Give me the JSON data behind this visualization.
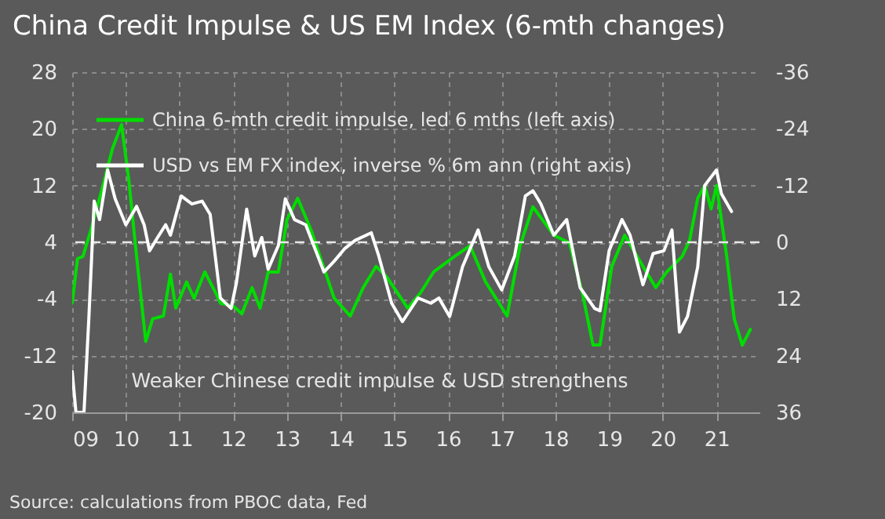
{
  "chart_data": {
    "type": "line",
    "title": "China Credit Impulse & US EM Index (6-mth changes)",
    "xlim": [
      2009,
      2021.8
    ],
    "xticks": [
      {
        "value": 2009,
        "label": "09"
      },
      {
        "value": 2010,
        "label": "10"
      },
      {
        "value": 2011,
        "label": "11"
      },
      {
        "value": 2012,
        "label": "12"
      },
      {
        "value": 2013,
        "label": "13"
      },
      {
        "value": 2014,
        "label": "14"
      },
      {
        "value": 2015,
        "label": "15"
      },
      {
        "value": 2016,
        "label": "16"
      },
      {
        "value": 2017,
        "label": "17"
      },
      {
        "value": 2018,
        "label": "18"
      },
      {
        "value": 2019,
        "label": "19"
      },
      {
        "value": 2020,
        "label": "20"
      },
      {
        "value": 2021,
        "label": "21"
      }
    ],
    "ylim": [
      -20,
      28
    ],
    "yticks": [
      -20,
      -12,
      -4,
      4,
      12,
      20,
      28
    ],
    "y2lim": [
      36,
      -36
    ],
    "y2ticks": [
      -36,
      -24,
      -12,
      0,
      12,
      24,
      36
    ],
    "grid": true,
    "legend": "top left",
    "line_style": "solid",
    "ref_lines": [
      {
        "axis": "y",
        "value": 4,
        "line_style": "dashed",
        "color": "#e8e8e8"
      }
    ],
    "series": [
      {
        "name": "China  6-mth  credit impulse, led 6 mths (left axis)",
        "color": "#00dd00",
        "x": [
          2009.0,
          2009.1,
          2009.2,
          2009.36,
          2009.56,
          2009.75,
          2009.92,
          2010.05,
          2010.2,
          2010.37,
          2010.5,
          2010.7,
          2010.83,
          2010.93,
          2011.13,
          2011.27,
          2011.47,
          2011.67,
          2011.76,
          2012.0,
          2012.16,
          2012.35,
          2012.5,
          2012.65,
          2012.84,
          2013.0,
          2013.2,
          2013.45,
          2013.88,
          2014.18,
          2014.42,
          2014.66,
          2014.86,
          2015.25,
          2015.49,
          2015.73,
          2016.12,
          2016.41,
          2016.7,
          2017.1,
          2017.34,
          2017.58,
          2017.97,
          2018.26,
          2018.5,
          2018.7,
          2018.83,
          2019.05,
          2019.29,
          2019.63,
          2019.87,
          2020.07,
          2020.36,
          2020.5,
          2020.65,
          2020.78,
          2020.9,
          2021.0,
          2021.19,
          2021.33,
          2021.48,
          2021.63
        ],
        "values": [
          -4.6,
          1.7,
          2,
          6,
          11.6,
          17.2,
          20.6,
          13.1,
          2,
          -10,
          -6.8,
          -6.4,
          -0.5,
          -5.3,
          -1.6,
          -3.9,
          -0.2,
          -3.1,
          -4.6,
          -5,
          -6.1,
          -2.4,
          -5.3,
          -0.2,
          -0.2,
          7.2,
          10.2,
          5.7,
          -3.9,
          -6.4,
          -2.4,
          0.6,
          -0.9,
          -5.3,
          -3.1,
          -0.2,
          2,
          3.5,
          -1.6,
          -6.4,
          3.5,
          9,
          5,
          3.9,
          -3.1,
          -10.5,
          -10.5,
          0.6,
          5,
          0.6,
          -2.4,
          -0.2,
          2,
          4.3,
          10.2,
          12,
          8.7,
          12,
          2,
          -6.8,
          -10.5,
          -8.3
        ]
      },
      {
        "name": "USD vs EM  FX index,  inverse % 6m  ann  (right  axis)",
        "color": "#ffffff",
        "axis": "y2",
        "x": [
          2009.0,
          2009.07,
          2009.22,
          2009.31,
          2009.41,
          2009.51,
          2009.66,
          2009.8,
          2010.0,
          2010.2,
          2010.34,
          2010.44,
          2010.59,
          2010.74,
          2010.83,
          2011.03,
          2011.23,
          2011.42,
          2011.57,
          2011.76,
          2011.96,
          2012.06,
          2012.25,
          2012.4,
          2012.53,
          2012.65,
          2012.84,
          2012.97,
          2013.14,
          2013.35,
          2013.69,
          2013.88,
          2014.08,
          2014.27,
          2014.57,
          2014.71,
          2014.95,
          2015.15,
          2015.44,
          2015.68,
          2015.83,
          2016.03,
          2016.27,
          2016.56,
          2016.76,
          2017.0,
          2017.24,
          2017.44,
          2017.58,
          2017.73,
          2017.97,
          2018.21,
          2018.46,
          2018.73,
          2018.83,
          2019.0,
          2019.24,
          2019.39,
          2019.63,
          2019.82,
          2020.02,
          2020.17,
          2020.31,
          2020.46,
          2020.65,
          2020.78,
          2021.0,
          2021.09,
          2021.28
        ],
        "values": [
          27.3,
          36,
          36,
          16.2,
          -8.7,
          -4.8,
          -15.3,
          -9.2,
          -3.7,
          -7.6,
          -3.7,
          1.8,
          -1,
          -3.7,
          -1.5,
          -9.8,
          -8.1,
          -8.7,
          -5.9,
          11.8,
          14,
          8.5,
          -7,
          2.9,
          -1,
          5.7,
          0.7,
          -9.2,
          -4.8,
          -3.7,
          6.3,
          4,
          1.3,
          -0.4,
          -2,
          2.9,
          12.9,
          16.8,
          11.8,
          12.9,
          11.8,
          15.7,
          5.2,
          -2.6,
          5.2,
          10.1,
          2.9,
          -9.8,
          -10.9,
          -8.1,
          -1.5,
          -4.8,
          9.6,
          14,
          14.5,
          1.8,
          -4.8,
          -1.5,
          9,
          2.4,
          1.8,
          -2.6,
          19,
          15.7,
          5.2,
          -12,
          -15.3,
          -10.3,
          -6.5
        ]
      }
    ],
    "annotations": [
      "Weaker Chinese credit impulse & USD strengthens",
      "Source:  calculations  from  PBOC  data,  Fed"
    ]
  }
}
